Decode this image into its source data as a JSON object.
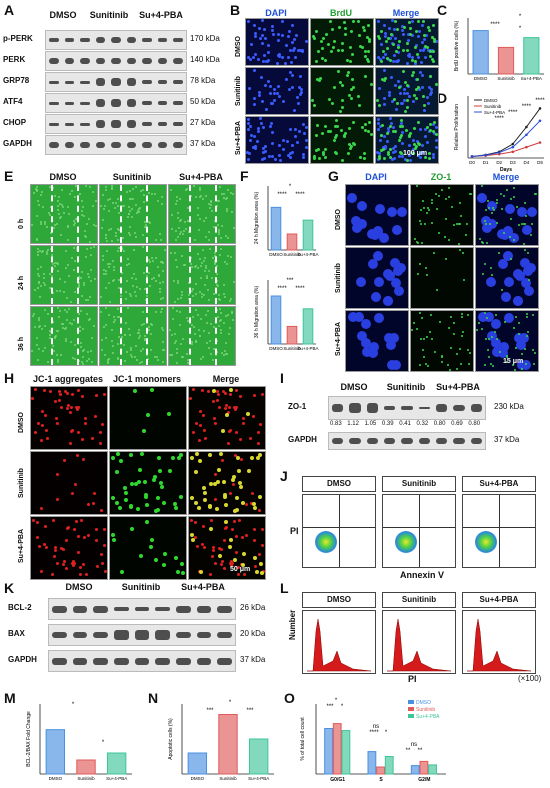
{
  "panels": {
    "A": {
      "label": "A",
      "headers": [
        "DMSO",
        "Sunitinib",
        "Su+4-PBA"
      ],
      "rows": [
        {
          "name": "p-PERK",
          "kda": "170 kDa"
        },
        {
          "name": "PERK",
          "kda": "140 kDa"
        },
        {
          "name": "GRP78",
          "kda": "78 kDa"
        },
        {
          "name": "ATF4",
          "kda": "50 kDa"
        },
        {
          "name": "CHOP",
          "kda": "27 kDa"
        },
        {
          "name": "GAPDH",
          "kda": "37 kDa"
        }
      ]
    },
    "B": {
      "label": "B",
      "headers": [
        "DAPI",
        "BrdU",
        "Merge"
      ],
      "rows": [
        "DMSO",
        "Sunitinib",
        "Su+4-PBA"
      ],
      "scale": "100 μm"
    },
    "C": {
      "label": "C",
      "ylabel": "BrdU positive cells (%)",
      "categories": [
        "DMSO",
        "Sunitinib",
        "Su+4-PBA"
      ],
      "sig": [
        "****",
        "*",
        "*"
      ]
    },
    "D": {
      "label": "D",
      "ylabel": "Relative Proliferation",
      "xlabel": "Days",
      "legend": [
        "DMSO",
        "Sunitinib",
        "Su+4-PBA"
      ],
      "xticks": [
        "D0",
        "D1",
        "D2",
        "D3",
        "D4",
        "D5"
      ],
      "sig": [
        "****",
        "****",
        "****",
        "****"
      ]
    },
    "E": {
      "label": "E",
      "headers": [
        "DMSO",
        "Sunitinib",
        "Su+4-PBA"
      ],
      "rows": [
        "0 h",
        "24 h",
        "36 h"
      ]
    },
    "F": {
      "label": "F",
      "ylabel1": "24 h Migration area (%)",
      "ylabel2": "36 h Migration area (%)",
      "categories": [
        "DMSO",
        "Sunitinib",
        "Su+4-PBA"
      ],
      "sig1": [
        "*",
        "****",
        "****"
      ],
      "sig2": [
        "***",
        "****",
        "****"
      ]
    },
    "G": {
      "label": "G",
      "headers": [
        "DAPI",
        "ZO-1",
        "Merge"
      ],
      "rows": [
        "DMSO",
        "Sunitinib",
        "Su+4-PBA"
      ],
      "scale": "15 μm"
    },
    "H": {
      "label": "H",
      "headers": [
        "JC-1 aggregates",
        "JC-1 monomers",
        "Merge"
      ],
      "rows": [
        "DMSO",
        "Sunitinib",
        "Su+4-PBA"
      ],
      "scale": "50 μm"
    },
    "I": {
      "label": "I",
      "headers": [
        "DMSO",
        "Sunitinib",
        "Su+4-PBA"
      ],
      "rows": [
        {
          "name": "ZO-1",
          "kda": "230 kDa"
        },
        {
          "name": "GAPDH",
          "kda": "37 kDa"
        }
      ],
      "quant": [
        "0.83",
        "1.12",
        "1.05",
        "0.39",
        "0.41",
        "0.32",
        "0.80",
        "0.69",
        "0.80"
      ]
    },
    "J": {
      "label": "J",
      "headers": [
        "DMSO",
        "Sunitinib",
        "Su+4-PBA"
      ],
      "ylabel": "PI",
      "xlabel": "Annexin V"
    },
    "K": {
      "label": "K",
      "headers": [
        "DMSO",
        "Sunitinib",
        "Su+4-PBA"
      ],
      "rows": [
        {
          "name": "BCL-2",
          "kda": "26 kDa"
        },
        {
          "name": "BAX",
          "kda": "20 kDa"
        },
        {
          "name": "GAPDH",
          "kda": "37 kDa"
        }
      ]
    },
    "L": {
      "label": "L",
      "headers": [
        "DMSO",
        "Sunitinib",
        "Su+4-PBA"
      ],
      "ylabel": "Number",
      "xlabel": "PI",
      "scale": "(×100)"
    },
    "M": {
      "label": "M",
      "ylabel": "BCL-2/BAX Fold Change",
      "categories": [
        "DMSO",
        "Sunitinib",
        "Su+4-PBA"
      ],
      "sig": [
        "*",
        "*"
      ]
    },
    "N": {
      "label": "N",
      "ylabel": "Apoptotic cells (%)",
      "categories": [
        "DMSO",
        "Sunitinib",
        "Su+4-PBA"
      ],
      "sig": [
        "*",
        "***",
        "***"
      ]
    },
    "O": {
      "label": "O",
      "ylabel": "% of total cell count",
      "legend": [
        "DMSO",
        "Sunitinib",
        "Su+4-PBA"
      ],
      "groups": [
        "G0/G1",
        "S",
        "G2/M"
      ],
      "sig": [
        "*",
        "***",
        "*",
        "ns",
        "****",
        "*",
        "ns",
        "**",
        "**"
      ]
    }
  },
  "chart_data": [
    {
      "type": "bar",
      "panel": "C",
      "categories": [
        "DMSO",
        "Sunitinib",
        "Su+4-PBA"
      ],
      "values": [
        0.62,
        0.38,
        0.52
      ],
      "ylim": [
        0,
        0.8
      ],
      "colors": [
        "#4a90e2",
        "#e05a5a",
        "#3fc59a"
      ]
    },
    {
      "type": "line",
      "panel": "D",
      "x": [
        "D0",
        "D1",
        "D2",
        "D3",
        "D4",
        "D5"
      ],
      "series": [
        {
          "name": "DMSO",
          "values": [
            1,
            2,
            4,
            9,
            20,
            32
          ],
          "color": "#222222"
        },
        {
          "name": "Sunitinib",
          "values": [
            1,
            1.5,
            2.5,
            4,
            7,
            10
          ],
          "color": "#d03a3a"
        },
        {
          "name": "Su+4-PBA",
          "values": [
            1,
            1.8,
            3.5,
            7,
            15,
            24
          ],
          "color": "#2c4fd8"
        }
      ],
      "ylim": [
        0,
        40
      ]
    },
    {
      "type": "bar",
      "panel": "F1",
      "categories": [
        "DMSO",
        "Sunitinib",
        "Su+4-PBA"
      ],
      "values": [
        40,
        15,
        28
      ],
      "ylim": [
        0,
        60
      ],
      "colors": [
        "#4a90e2",
        "#e05a5a",
        "#3fc59a"
      ]
    },
    {
      "type": "bar",
      "panel": "F2",
      "categories": [
        "DMSO",
        "Sunitinib",
        "Su+4-PBA"
      ],
      "values": [
        60,
        22,
        44
      ],
      "ylim": [
        0,
        80
      ],
      "colors": [
        "#4a90e2",
        "#e05a5a",
        "#3fc59a"
      ]
    },
    {
      "type": "bar",
      "panel": "M",
      "categories": [
        "DMSO",
        "Sunitinib",
        "Su+4-PBA"
      ],
      "values": [
        1.9,
        0.6,
        0.9
      ],
      "ylim": [
        0,
        3
      ],
      "colors": [
        "#4a90e2",
        "#e05a5a",
        "#3fc59a"
      ]
    },
    {
      "type": "bar",
      "panel": "N",
      "categories": [
        "DMSO",
        "Sunitinib",
        "Su+4-PBA"
      ],
      "values": [
        6,
        17,
        10
      ],
      "ylim": [
        0,
        20
      ],
      "colors": [
        "#4a90e2",
        "#e05a5a",
        "#3fc59a"
      ]
    },
    {
      "type": "bar",
      "panel": "O",
      "categories": [
        "G0/G1",
        "S",
        "G2/M"
      ],
      "series": [
        {
          "name": "DMSO",
          "values": [
            65,
            32,
            12
          ],
          "color": "#4a90e2"
        },
        {
          "name": "Sunitinib",
          "values": [
            72,
            10,
            18
          ],
          "color": "#e05a5a"
        },
        {
          "name": "Su+4-PBA",
          "values": [
            62,
            25,
            13
          ],
          "color": "#3fc59a"
        }
      ],
      "ylim": [
        0,
        100
      ]
    }
  ]
}
